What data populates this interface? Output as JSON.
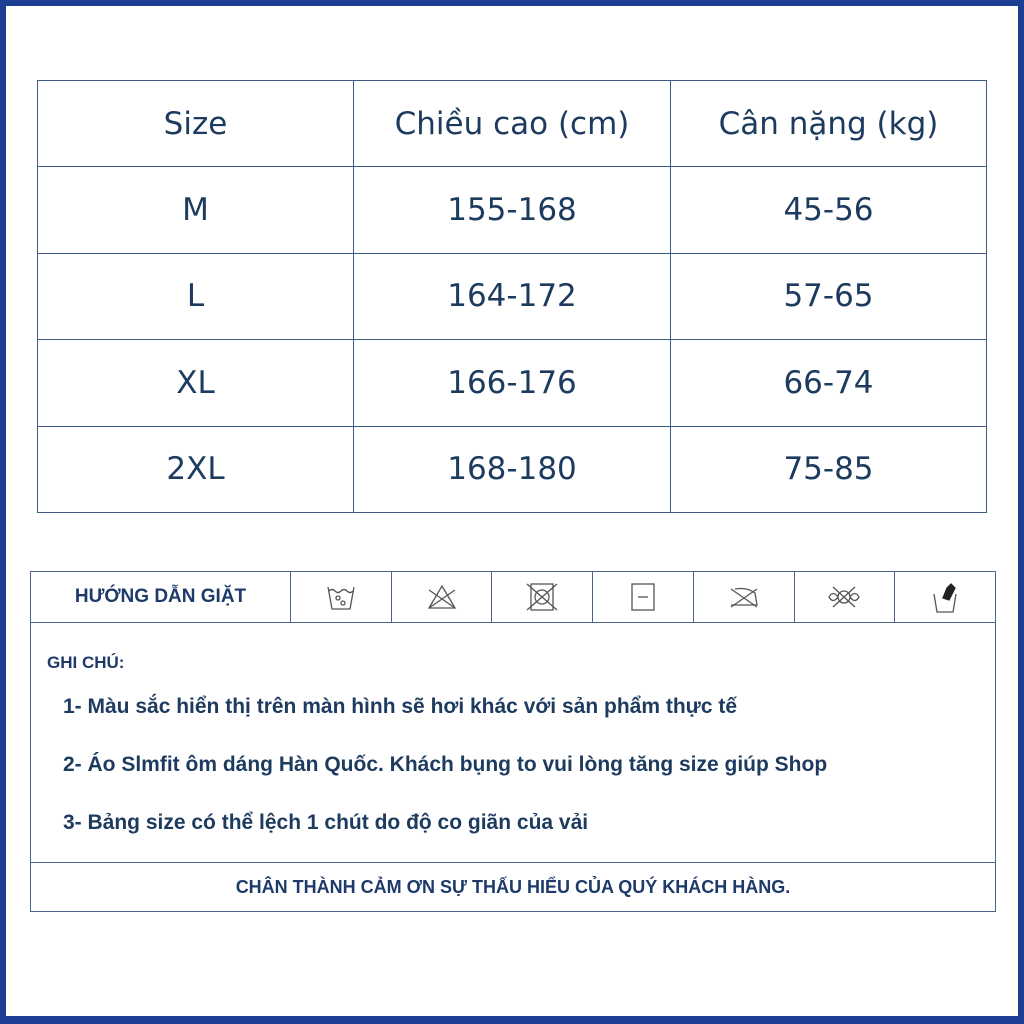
{
  "size_table": {
    "headers": [
      "Size",
      "Chiều cao (cm)",
      "Cân nặng (kg)"
    ],
    "rows": [
      [
        "M",
        "155-168",
        "45-56"
      ],
      [
        "L",
        "164-172",
        "57-65"
      ],
      [
        "XL",
        "166-176",
        "66-74"
      ],
      [
        "2XL",
        "168-180",
        "75-85"
      ]
    ]
  },
  "care": {
    "title": "HƯỚNG DẪN GIẶT",
    "icons": [
      "wash-30-icon",
      "no-bleach-icon",
      "no-tumble-dry-icon",
      "flat-dry-icon",
      "no-iron-icon",
      "no-dry-clean-icon",
      "hand-wash-icon"
    ]
  },
  "notes": {
    "title": "GHI CHÚ:",
    "items": [
      "1- Màu sắc hiển thị trên màn hình sẽ hơi khác với sản phẩm thực tế",
      "2- Áo Slmfit ôm dáng Hàn Quốc. Khách bụng to vui lòng tăng size giúp Shop",
      "3- Bảng size có thể lệch 1 chút do độ co giãn của vải"
    ]
  },
  "footer": "CHÂN THÀNH CẢM ƠN SỰ THẤU HIỂU CỦA QUÝ KHÁCH HÀNG.",
  "colors": {
    "frame": "#1c3f94",
    "text": "#1d3a5f"
  }
}
